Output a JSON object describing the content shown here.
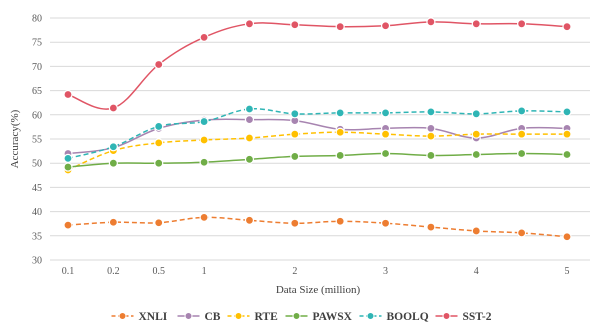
{
  "chart_data": {
    "type": "line",
    "xlabel": "Data Size (million)",
    "ylabel": "Accuracy(%)",
    "ylim": [
      30,
      80
    ],
    "y_ticks": [
      30,
      35,
      40,
      45,
      50,
      55,
      60,
      65,
      70,
      75,
      80
    ],
    "x_tick_labels": [
      "0.1",
      "0.2",
      "0.5",
      "1",
      "2",
      "3",
      "4",
      "5"
    ],
    "x_tick_positions": [
      0,
      1,
      2,
      3,
      5,
      7,
      9,
      11
    ],
    "grid": "horizontal",
    "legend_position": "bottom",
    "line_smoothing": true,
    "series": [
      {
        "name": "XNLI",
        "color": "#ED7D31",
        "dash": true,
        "x": [
          0,
          1,
          2,
          3,
          4,
          5,
          6,
          7,
          8,
          9,
          10,
          11
        ],
        "values": [
          37.2,
          37.8,
          37.7,
          38.8,
          38.2,
          37.6,
          38.0,
          37.6,
          36.8,
          36.0,
          35.6,
          34.8
        ]
      },
      {
        "name": "CB",
        "color": "#A784B0",
        "dash": false,
        "x": [
          0,
          1,
          2,
          3,
          4,
          5,
          6,
          7,
          8,
          9,
          10,
          11
        ],
        "values": [
          52.0,
          53.2,
          57.2,
          58.9,
          59.0,
          58.8,
          57.0,
          57.2,
          57.2,
          55.2,
          57.2,
          57.2
        ]
      },
      {
        "name": "RTE",
        "color": "#FFC000",
        "dash": true,
        "x": [
          0,
          1,
          2,
          3,
          4,
          5,
          6,
          7,
          8,
          9,
          10,
          11
        ],
        "values": [
          48.6,
          52.6,
          54.2,
          54.8,
          55.2,
          56.0,
          56.4,
          56.0,
          55.6,
          56.0,
          56.0,
          56.0
        ]
      },
      {
        "name": "PAWSX",
        "color": "#70AD47",
        "dash": false,
        "x": [
          0,
          1,
          2,
          3,
          4,
          5,
          6,
          7,
          8,
          9,
          10,
          11
        ],
        "values": [
          49.2,
          50.0,
          50.0,
          50.2,
          50.8,
          51.4,
          51.6,
          52.0,
          51.6,
          51.8,
          52.0,
          51.8
        ]
      },
      {
        "name": "BOOLQ",
        "color": "#2FB5B5",
        "dash": true,
        "x": [
          0,
          1,
          2,
          3,
          4,
          5,
          6,
          7,
          8,
          9,
          10,
          11
        ],
        "values": [
          51.0,
          53.4,
          57.6,
          58.6,
          61.2,
          60.2,
          60.4,
          60.4,
          60.6,
          60.2,
          60.8,
          60.6
        ]
      },
      {
        "name": "SST-2",
        "color": "#E05565",
        "dash": false,
        "x": [
          0,
          1,
          2,
          3,
          4,
          5,
          6,
          7,
          8,
          9,
          10,
          11
        ],
        "values": [
          64.2,
          61.4,
          70.4,
          76.0,
          78.8,
          78.6,
          78.2,
          78.4,
          79.2,
          78.8,
          78.8,
          78.2
        ]
      }
    ]
  }
}
